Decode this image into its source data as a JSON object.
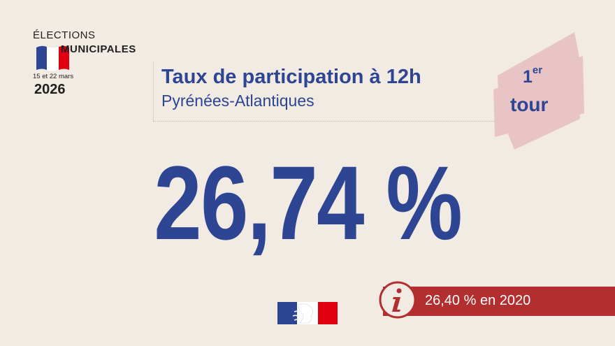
{
  "logo": {
    "line1": "ÉLECTIONS",
    "line2": "MUNICIPALES",
    "dates": "15 et 22 mars",
    "year": "2026"
  },
  "header": {
    "title": "Taux de participation à 12h",
    "region": "Pyrénées-Atlantiques"
  },
  "round_badge": {
    "number": "1",
    "suffix": "er",
    "label": "tour"
  },
  "main": {
    "rate": "26,74 %"
  },
  "previous": {
    "text": "26,40 % en 2020",
    "icon": "info-icon"
  },
  "colors": {
    "background": "#f2ebe3",
    "primary_blue": "#2d4592",
    "accent_red": "#b32e2e",
    "badge_pink": "#e9c4c6"
  }
}
